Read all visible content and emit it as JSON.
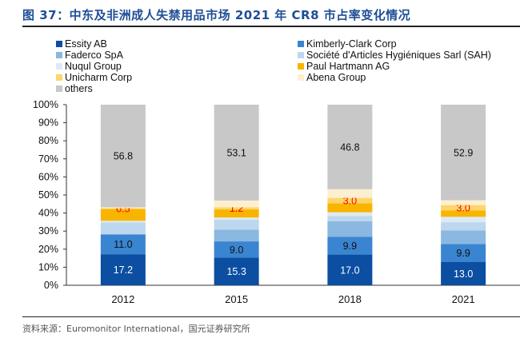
{
  "title": "图 37：中东及非洲成人失禁用品市场 2021 年 CR8 市占率变化情况",
  "source": "资料来源：Euromonitor International，国元证券研究所",
  "chart_data": {
    "type": "bar",
    "stacked": true,
    "title": "图 37：中东及非洲成人失禁用品市场 2021 年 CR8 市占率变化情况",
    "xlabel": "",
    "ylabel": "",
    "ylim": [
      0,
      100
    ],
    "yticks": [
      "0%",
      "10%",
      "20%",
      "30%",
      "40%",
      "50%",
      "60%",
      "70%",
      "80%",
      "90%",
      "100%"
    ],
    "grid": false,
    "legend_position": "top",
    "categories": [
      "2012",
      "2015",
      "2018",
      "2021"
    ],
    "series": [
      {
        "name": "Essity AB",
        "color": "#0b4ea2",
        "values": [
          17.2,
          15.3,
          17.0,
          13.0
        ],
        "labels": [
          "17.2",
          "15.3",
          "17.0",
          "13.0"
        ],
        "label_color": "#ffffff"
      },
      {
        "name": "Kimberly-Clark Corp",
        "color": "#3a85d1",
        "values": [
          11.0,
          9.0,
          9.9,
          9.9
        ],
        "labels": [
          "11.0",
          "9.0",
          "9.9",
          "9.9"
        ],
        "label_color": "#111111"
      },
      {
        "name": "Faderco SpA",
        "color": "#8ab8e0",
        "values": [
          0,
          6.5,
          8.5,
          7.5
        ],
        "labels": [
          "",
          "",
          "",
          ""
        ]
      },
      {
        "name": "Société d'Articles Hygiéniques Sarl (SAH)",
        "color": "#bdd7ee",
        "values": [
          6.5,
          5.5,
          3.0,
          4.5
        ],
        "labels": [
          "",
          "",
          "",
          ""
        ]
      },
      {
        "name": "Nuqul Group",
        "color": "#dde9f6",
        "values": [
          1.0,
          1.2,
          2.0,
          3.0
        ],
        "labels": [
          "",
          "",
          "",
          ""
        ]
      },
      {
        "name": "Paul Hartmann AG",
        "color": "#f7b500",
        "values": [
          6.5,
          4.5,
          5.0,
          3.5
        ],
        "labels": [
          "",
          "",
          "",
          ""
        ]
      },
      {
        "name": "Unicharm Corp",
        "color": "#fdd56b",
        "values": [
          0.5,
          1.2,
          3.0,
          3.0
        ],
        "labels": [
          "0.5",
          "1.2",
          "3.0",
          "3.0"
        ],
        "label_color": "#ff0000"
      },
      {
        "name": "Abena Group",
        "color": "#fdf0d0",
        "values": [
          0.5,
          3.7,
          4.8,
          2.7
        ],
        "labels": [
          "",
          "",
          "",
          ""
        ]
      },
      {
        "name": "others",
        "color": "#c8c8c8",
        "values": [
          56.8,
          53.1,
          46.8,
          52.9
        ],
        "labels": [
          "56.8",
          "53.1",
          "46.8",
          "52.9"
        ],
        "label_color": "#111111"
      }
    ]
  }
}
